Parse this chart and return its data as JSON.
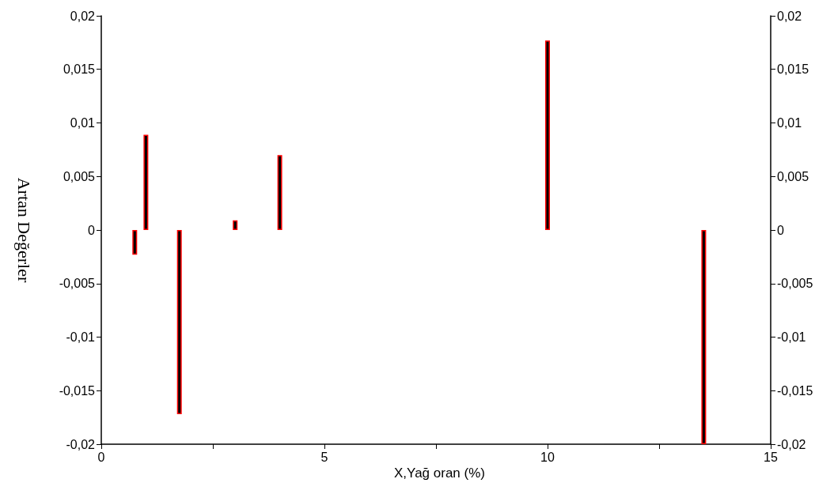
{
  "chart_data": {
    "type": "bar",
    "xlabel": "X,Yağ oran (%)",
    "ylabel": "Artan Değerler",
    "x": [
      0.75,
      1,
      1.75,
      3,
      4,
      10,
      13.5
    ],
    "values": [
      -0.0023,
      0.0089,
      -0.0172,
      0.0009,
      0.007,
      0.0177,
      -0.02
    ],
    "color": "#000000",
    "xlim": [
      0,
      15
    ],
    "xticks": [
      0,
      {
        "value": 2.5,
        "label": null
      },
      5,
      {
        "value": 7.5,
        "label": null
      },
      10,
      {
        "value": 12.5,
        "label": null
      },
      15
    ],
    "ylim": [
      -0.02,
      0.02
    ],
    "yticks": [
      {
        "value": -0.02,
        "label": "-0,02"
      },
      {
        "value": -0.015,
        "label": "-0,015"
      },
      {
        "value": -0.01,
        "label": "-0,01"
      },
      {
        "value": -0.005,
        "label": "-0,005"
      },
      0,
      {
        "value": 0.005,
        "label": "0,005"
      },
      {
        "value": 0.01,
        "label": "0,01"
      },
      {
        "value": 0.015,
        "label": "0,015"
      },
      {
        "value": 0.02,
        "label": "0,02"
      }
    ],
    "y2lim": [
      -0.02,
      0.02
    ],
    "y2ticks": [
      {
        "value": -0.02,
        "label": "-0,02"
      },
      {
        "value": -0.015,
        "label": "-0,015"
      },
      {
        "value": -0.01,
        "label": "-0,01"
      },
      {
        "value": -0.005,
        "label": "-0,005"
      },
      0,
      {
        "value": 0.005,
        "label": "0,005"
      },
      {
        "value": 0.01,
        "label": "0,01"
      },
      {
        "value": 0.015,
        "label": "0,015"
      },
      {
        "value": 0.02,
        "label": "0,02"
      }
    ],
    "grid": false
  }
}
